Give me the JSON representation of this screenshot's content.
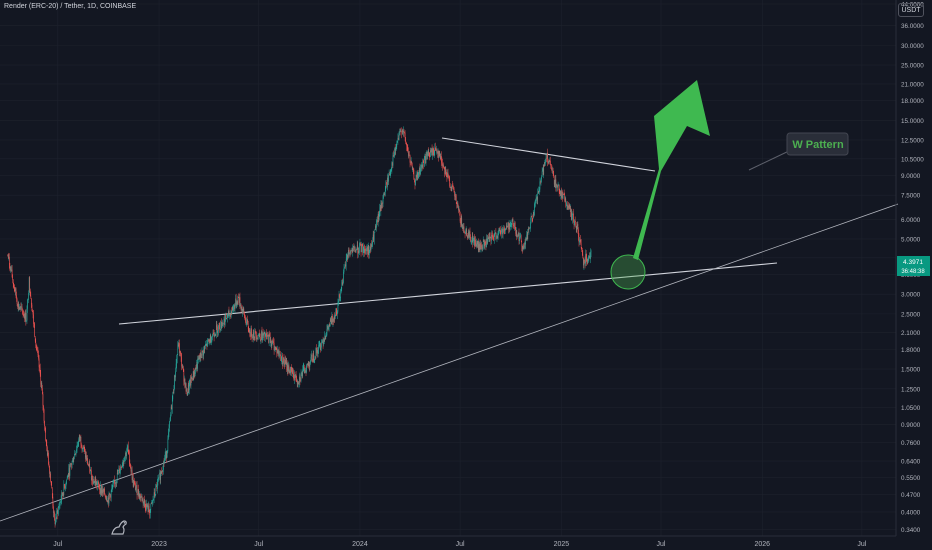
{
  "header": {
    "symbol_title": "Render (ERC-20) / Tether, 1D, COINBASE",
    "currency_label": "USDT"
  },
  "colors": {
    "background": "#131722",
    "grid": "#1e222d",
    "up_candle": "#26a69a",
    "down_candle": "#ef5350",
    "trendline": "#d1d4dc",
    "arrow": "#3fb950",
    "price_badge": "#089981"
  },
  "annotation": {
    "label": "W Pattern"
  },
  "price_badge": {
    "price": "4.3971",
    "countdown": "36:48:38"
  },
  "chart_data": {
    "type": "candlestick",
    "title": "Render (ERC-20) / Tether, 1D, COINBASE",
    "yscale": "log",
    "ylim": [
      0.32,
      44
    ],
    "y_ticks": [
      "44.0000",
      "36.0000",
      "30.0000",
      "25.0000",
      "21.0000",
      "18.0000",
      "15.0000",
      "12.5000",
      "10.5000",
      "9.0000",
      "7.5000",
      "6.0000",
      "5.0000",
      "4.2000",
      "3.6000",
      "3.0000",
      "2.5000",
      "2.1000",
      "1.8000",
      "1.5000",
      "1.2500",
      "1.0500",
      "0.9000",
      "0.7600",
      "0.6400",
      "0.5500",
      "0.4700",
      "0.4000",
      "0.3400"
    ],
    "x_ticks": [
      "Jul",
      "2023",
      "Jul",
      "2024",
      "Jul",
      "2025",
      "Jul",
      "2026",
      "Jul"
    ],
    "x_tick_dates": [
      "2022-07-01",
      "2023-01-01",
      "2023-07-01",
      "2024-01-01",
      "2024-07-01",
      "2025-01-01",
      "2025-07-01",
      "2026-01-01",
      "2026-07-01"
    ],
    "xlim": [
      "2022-03-18",
      "2026-09-01"
    ],
    "last_price": 4.3971,
    "series": [
      {
        "values": [
          {
            "date": "2022-04-01",
            "close": 4.3
          },
          {
            "date": "2022-04-20",
            "close": 2.7
          },
          {
            "date": "2022-05-05",
            "close": 2.4
          },
          {
            "date": "2022-05-10",
            "close": 3.4
          },
          {
            "date": "2022-05-20",
            "close": 2.1
          },
          {
            "date": "2022-06-01",
            "close": 1.3
          },
          {
            "date": "2022-06-10",
            "close": 0.75
          },
          {
            "date": "2022-06-18",
            "close": 0.55
          },
          {
            "date": "2022-06-25",
            "close": 0.36
          },
          {
            "date": "2022-07-10",
            "close": 0.48
          },
          {
            "date": "2022-08-10",
            "close": 0.8
          },
          {
            "date": "2022-09-01",
            "close": 0.55
          },
          {
            "date": "2022-10-01",
            "close": 0.45
          },
          {
            "date": "2022-11-05",
            "close": 0.72
          },
          {
            "date": "2022-11-15",
            "close": 0.52
          },
          {
            "date": "2022-12-15",
            "close": 0.4
          },
          {
            "date": "2023-01-15",
            "close": 0.7
          },
          {
            "date": "2023-02-05",
            "close": 1.9
          },
          {
            "date": "2023-02-20",
            "close": 1.2
          },
          {
            "date": "2023-03-15",
            "close": 1.65
          },
          {
            "date": "2023-04-10",
            "close": 2.1
          },
          {
            "date": "2023-05-10",
            "close": 2.5
          },
          {
            "date": "2023-05-25",
            "close": 2.9
          },
          {
            "date": "2023-06-15",
            "close": 2.1
          },
          {
            "date": "2023-07-20",
            "close": 2.0
          },
          {
            "date": "2023-08-20",
            "close": 1.55
          },
          {
            "date": "2023-09-10",
            "close": 1.35
          },
          {
            "date": "2023-10-20",
            "close": 1.85
          },
          {
            "date": "2023-11-20",
            "close": 2.6
          },
          {
            "date": "2023-12-10",
            "close": 4.4
          },
          {
            "date": "2024-01-01",
            "close": 4.6
          },
          {
            "date": "2024-01-20",
            "close": 4.5
          },
          {
            "date": "2024-02-10",
            "close": 7.0
          },
          {
            "date": "2024-03-10",
            "close": 12.5
          },
          {
            "date": "2024-03-18",
            "close": 14.0
          },
          {
            "date": "2024-04-10",
            "close": 8.5
          },
          {
            "date": "2024-05-01",
            "close": 10.8
          },
          {
            "date": "2024-05-20",
            "close": 11.5
          },
          {
            "date": "2024-06-20",
            "close": 7.6
          },
          {
            "date": "2024-07-05",
            "close": 5.6
          },
          {
            "date": "2024-08-05",
            "close": 4.6
          },
          {
            "date": "2024-09-10",
            "close": 5.3
          },
          {
            "date": "2024-10-05",
            "close": 5.8
          },
          {
            "date": "2024-10-25",
            "close": 4.6
          },
          {
            "date": "2024-11-20",
            "close": 7.6
          },
          {
            "date": "2024-12-05",
            "close": 11.0
          },
          {
            "date": "2024-12-20",
            "close": 8.5
          },
          {
            "date": "2025-01-10",
            "close": 7.0
          },
          {
            "date": "2025-01-30",
            "close": 5.5
          },
          {
            "date": "2025-02-10",
            "close": 4.1
          },
          {
            "date": "2025-02-25",
            "close": 4.4
          }
        ]
      }
    ]
  }
}
